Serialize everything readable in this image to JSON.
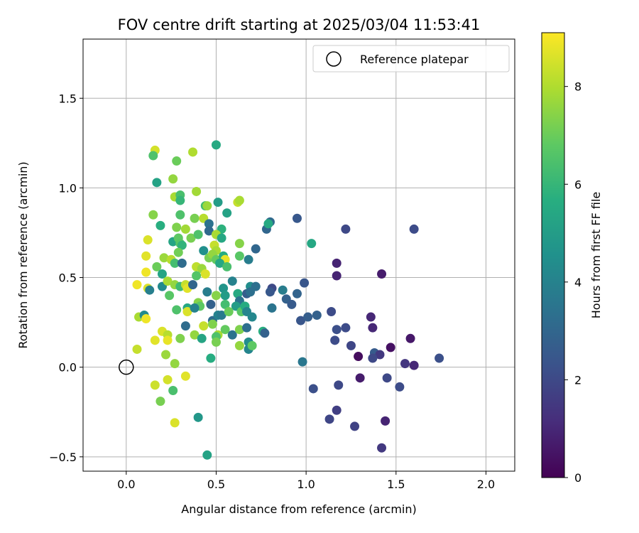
{
  "chart_data": {
    "type": "scatter",
    "title": "FOV centre drift starting at 2025/03/04 11:53:41",
    "xlabel": "Angular distance from reference (arcmin)",
    "ylabel": "Rotation from reference (arcmin)",
    "xlim": [
      -0.24,
      2.16
    ],
    "ylim": [
      -0.58,
      1.83
    ],
    "xticks": [
      "0.0",
      "0.5",
      "1.0",
      "1.5",
      "2.0"
    ],
    "yticks": [
      "−0.5",
      "0.0",
      "0.5",
      "1.0",
      "1.5"
    ],
    "grid": true,
    "legend": {
      "placement": "top-right",
      "entries": [
        "Reference platepar"
      ]
    },
    "reference_point": {
      "x": 0.0,
      "y": 0.0
    },
    "colorbar": {
      "label": "Hours from first FF file",
      "min": 0,
      "max": 9.1,
      "ticks": [
        "0",
        "2",
        "4",
        "6",
        "8"
      ],
      "colormap": "viridis"
    },
    "points": [
      {
        "x": 0.16,
        "y": 1.21,
        "h": 8.5
      },
      {
        "x": 0.15,
        "y": 1.18,
        "h": 6.5
      },
      {
        "x": 0.28,
        "y": 1.15,
        "h": 7.0
      },
      {
        "x": 0.37,
        "y": 1.2,
        "h": 8.0
      },
      {
        "x": 0.5,
        "y": 1.24,
        "h": 5.5
      },
      {
        "x": 0.17,
        "y": 1.03,
        "h": 5.2
      },
      {
        "x": 0.26,
        "y": 1.05,
        "h": 7.6
      },
      {
        "x": 0.39,
        "y": 0.98,
        "h": 7.8
      },
      {
        "x": 0.27,
        "y": 0.95,
        "h": 7.9
      },
      {
        "x": 0.3,
        "y": 0.96,
        "h": 6.4
      },
      {
        "x": 0.3,
        "y": 0.93,
        "h": 6.0
      },
      {
        "x": 0.44,
        "y": 0.9,
        "h": 6.2
      },
      {
        "x": 0.45,
        "y": 0.9,
        "h": 7.7
      },
      {
        "x": 0.51,
        "y": 0.92,
        "h": 5.0
      },
      {
        "x": 0.62,
        "y": 0.92,
        "h": 8.3
      },
      {
        "x": 0.63,
        "y": 0.93,
        "h": 7.9
      },
      {
        "x": 0.15,
        "y": 0.85,
        "h": 7.4
      },
      {
        "x": 0.3,
        "y": 0.85,
        "h": 6.5
      },
      {
        "x": 0.38,
        "y": 0.83,
        "h": 7.2
      },
      {
        "x": 0.43,
        "y": 0.83,
        "h": 8.1
      },
      {
        "x": 0.56,
        "y": 0.86,
        "h": 5.2
      },
      {
        "x": 0.19,
        "y": 0.79,
        "h": 5.7
      },
      {
        "x": 0.28,
        "y": 0.78,
        "h": 7.3
      },
      {
        "x": 0.33,
        "y": 0.77,
        "h": 7.8
      },
      {
        "x": 0.46,
        "y": 0.8,
        "h": 3.4
      },
      {
        "x": 0.46,
        "y": 0.76,
        "h": 3.1
      },
      {
        "x": 0.53,
        "y": 0.77,
        "h": 5.8
      },
      {
        "x": 0.12,
        "y": 0.71,
        "h": 8.6
      },
      {
        "x": 0.26,
        "y": 0.7,
        "h": 5.3
      },
      {
        "x": 0.29,
        "y": 0.72,
        "h": 6.8
      },
      {
        "x": 0.36,
        "y": 0.72,
        "h": 7.2
      },
      {
        "x": 0.4,
        "y": 0.74,
        "h": 6.5
      },
      {
        "x": 0.5,
        "y": 0.74,
        "h": 7.9
      },
      {
        "x": 0.53,
        "y": 0.72,
        "h": 5.4
      },
      {
        "x": 0.3,
        "y": 0.69,
        "h": 6.7
      },
      {
        "x": 0.31,
        "y": 0.68,
        "h": 5.9
      },
      {
        "x": 0.43,
        "y": 0.65,
        "h": 4.5
      },
      {
        "x": 0.49,
        "y": 0.68,
        "h": 8.3
      },
      {
        "x": 0.5,
        "y": 0.65,
        "h": 7.9
      },
      {
        "x": 0.63,
        "y": 0.69,
        "h": 7.4
      },
      {
        "x": 0.72,
        "y": 0.66,
        "h": 3.0
      },
      {
        "x": 0.11,
        "y": 0.62,
        "h": 8.7
      },
      {
        "x": 0.21,
        "y": 0.61,
        "h": 7.7
      },
      {
        "x": 0.25,
        "y": 0.6,
        "h": 8.1
      },
      {
        "x": 0.27,
        "y": 0.58,
        "h": 6.3
      },
      {
        "x": 0.29,
        "y": 0.64,
        "h": 7.1
      },
      {
        "x": 0.46,
        "y": 0.61,
        "h": 7.2
      },
      {
        "x": 0.48,
        "y": 0.63,
        "h": 7.6
      },
      {
        "x": 0.5,
        "y": 0.6,
        "h": 6.9
      },
      {
        "x": 0.54,
        "y": 0.62,
        "h": 5.6
      },
      {
        "x": 0.55,
        "y": 0.6,
        "h": 8.8
      },
      {
        "x": 0.63,
        "y": 0.62,
        "h": 6.7
      },
      {
        "x": 0.68,
        "y": 0.6,
        "h": 3.8
      },
      {
        "x": 0.17,
        "y": 0.56,
        "h": 7.0
      },
      {
        "x": 0.31,
        "y": 0.58,
        "h": 3.2
      },
      {
        "x": 0.39,
        "y": 0.56,
        "h": 8.2
      },
      {
        "x": 0.42,
        "y": 0.55,
        "h": 7.7
      },
      {
        "x": 0.44,
        "y": 0.52,
        "h": 8.6
      },
      {
        "x": 0.52,
        "y": 0.58,
        "h": 5.4
      },
      {
        "x": 0.56,
        "y": 0.56,
        "h": 6.4
      },
      {
        "x": 0.2,
        "y": 0.52,
        "h": 5.3
      },
      {
        "x": 0.11,
        "y": 0.53,
        "h": 8.9
      },
      {
        "x": 0.39,
        "y": 0.51,
        "h": 6.6
      },
      {
        "x": 0.06,
        "y": 0.46,
        "h": 8.9
      },
      {
        "x": 0.2,
        "y": 0.45,
        "h": 4.3
      },
      {
        "x": 0.23,
        "y": 0.48,
        "h": 7.9
      },
      {
        "x": 0.27,
        "y": 0.46,
        "h": 7.6
      },
      {
        "x": 0.3,
        "y": 0.45,
        "h": 6.2
      },
      {
        "x": 0.33,
        "y": 0.46,
        "h": 8.3
      },
      {
        "x": 0.34,
        "y": 0.44,
        "h": 8.7
      },
      {
        "x": 0.37,
        "y": 0.46,
        "h": 3.0
      },
      {
        "x": 0.54,
        "y": 0.44,
        "h": 4.7
      },
      {
        "x": 0.59,
        "y": 0.48,
        "h": 4.0
      },
      {
        "x": 0.69,
        "y": 0.45,
        "h": 4.4
      },
      {
        "x": 0.72,
        "y": 0.45,
        "h": 3.3
      },
      {
        "x": 0.12,
        "y": 0.44,
        "h": 8.6
      },
      {
        "x": 0.13,
        "y": 0.43,
        "h": 3.9
      },
      {
        "x": 0.24,
        "y": 0.4,
        "h": 6.7
      },
      {
        "x": 0.45,
        "y": 0.42,
        "h": 3.8
      },
      {
        "x": 0.5,
        "y": 0.4,
        "h": 7.4
      },
      {
        "x": 0.55,
        "y": 0.4,
        "h": 5.0
      },
      {
        "x": 0.62,
        "y": 0.41,
        "h": 5.5
      },
      {
        "x": 0.67,
        "y": 0.41,
        "h": 2.7
      },
      {
        "x": 0.69,
        "y": 0.42,
        "h": 3.3
      },
      {
        "x": 0.81,
        "y": 0.44,
        "h": 2.0
      },
      {
        "x": 0.8,
        "y": 0.42,
        "h": 2.5
      },
      {
        "x": 0.87,
        "y": 0.43,
        "h": 3.8
      },
      {
        "x": 0.89,
        "y": 0.38,
        "h": 2.8
      },
      {
        "x": 0.95,
        "y": 0.41,
        "h": 2.9
      },
      {
        "x": 0.99,
        "y": 0.47,
        "h": 2.4
      },
      {
        "x": 0.63,
        "y": 0.37,
        "h": 3.5
      },
      {
        "x": 0.34,
        "y": 0.33,
        "h": 5.4
      },
      {
        "x": 0.34,
        "y": 0.31,
        "h": 8.6
      },
      {
        "x": 0.4,
        "y": 0.36,
        "h": 7.4
      },
      {
        "x": 0.41,
        "y": 0.34,
        "h": 6.8
      },
      {
        "x": 0.47,
        "y": 0.35,
        "h": 2.8
      },
      {
        "x": 0.55,
        "y": 0.35,
        "h": 6.3
      },
      {
        "x": 0.61,
        "y": 0.34,
        "h": 5.0
      },
      {
        "x": 0.64,
        "y": 0.31,
        "h": 6.7
      },
      {
        "x": 0.66,
        "y": 0.34,
        "h": 5.6
      },
      {
        "x": 0.67,
        "y": 0.31,
        "h": 4.1
      },
      {
        "x": 0.07,
        "y": 0.28,
        "h": 7.9
      },
      {
        "x": 0.1,
        "y": 0.29,
        "h": 4.3
      },
      {
        "x": 0.28,
        "y": 0.32,
        "h": 6.5
      },
      {
        "x": 0.38,
        "y": 0.33,
        "h": 4.0
      },
      {
        "x": 0.48,
        "y": 0.26,
        "h": 3.2
      },
      {
        "x": 0.51,
        "y": 0.29,
        "h": 4.0
      },
      {
        "x": 0.53,
        "y": 0.29,
        "h": 3.7
      },
      {
        "x": 0.57,
        "y": 0.31,
        "h": 7.0
      },
      {
        "x": 0.7,
        "y": 0.28,
        "h": 4.2
      },
      {
        "x": 0.81,
        "y": 0.33,
        "h": 3.5
      },
      {
        "x": 0.92,
        "y": 0.35,
        "h": 2.6
      },
      {
        "x": 0.97,
        "y": 0.26,
        "h": 2.4
      },
      {
        "x": 1.01,
        "y": 0.28,
        "h": 2.7
      },
      {
        "x": 1.06,
        "y": 0.29,
        "h": 2.8
      },
      {
        "x": 1.14,
        "y": 0.31,
        "h": 2.1
      },
      {
        "x": 0.11,
        "y": 0.27,
        "h": 8.9
      },
      {
        "x": 0.2,
        "y": 0.2,
        "h": 8.6
      },
      {
        "x": 0.23,
        "y": 0.18,
        "h": 8.1
      },
      {
        "x": 0.33,
        "y": 0.23,
        "h": 3.2
      },
      {
        "x": 0.38,
        "y": 0.18,
        "h": 7.6
      },
      {
        "x": 0.43,
        "y": 0.23,
        "h": 8.3
      },
      {
        "x": 0.48,
        "y": 0.24,
        "h": 7.3
      },
      {
        "x": 0.51,
        "y": 0.18,
        "h": 7.9
      },
      {
        "x": 0.55,
        "y": 0.21,
        "h": 6.9
      },
      {
        "x": 0.59,
        "y": 0.18,
        "h": 3.4
      },
      {
        "x": 0.63,
        "y": 0.21,
        "h": 7.3
      },
      {
        "x": 0.67,
        "y": 0.22,
        "h": 3.3
      },
      {
        "x": 0.76,
        "y": 0.2,
        "h": 5.7
      },
      {
        "x": 0.77,
        "y": 0.19,
        "h": 2.8
      },
      {
        "x": 1.17,
        "y": 0.21,
        "h": 2.2
      },
      {
        "x": 1.22,
        "y": 0.22,
        "h": 2.1
      },
      {
        "x": 1.16,
        "y": 0.15,
        "h": 2.1
      },
      {
        "x": 1.25,
        "y": 0.12,
        "h": 1.9
      },
      {
        "x": 0.16,
        "y": 0.15,
        "h": 8.7
      },
      {
        "x": 0.23,
        "y": 0.15,
        "h": 8.8
      },
      {
        "x": 0.3,
        "y": 0.16,
        "h": 7.3
      },
      {
        "x": 0.42,
        "y": 0.16,
        "h": 5.3
      },
      {
        "x": 0.5,
        "y": 0.17,
        "h": 6.5
      },
      {
        "x": 0.5,
        "y": 0.14,
        "h": 7.2
      },
      {
        "x": 0.63,
        "y": 0.12,
        "h": 7.6
      },
      {
        "x": 0.68,
        "y": 0.14,
        "h": 4.4
      },
      {
        "x": 0.68,
        "y": 0.1,
        "h": 4.1
      },
      {
        "x": 0.7,
        "y": 0.12,
        "h": 6.8
      },
      {
        "x": 0.06,
        "y": 0.1,
        "h": 8.3
      },
      {
        "x": 0.22,
        "y": 0.07,
        "h": 7.7
      },
      {
        "x": 0.47,
        "y": 0.05,
        "h": 5.6
      },
      {
        "x": 1.29,
        "y": 0.06,
        "h": 0.3
      },
      {
        "x": 1.38,
        "y": 0.08,
        "h": 2.6
      },
      {
        "x": 1.41,
        "y": 0.07,
        "h": 1.5
      },
      {
        "x": 1.37,
        "y": 0.05,
        "h": 2.0
      },
      {
        "x": 1.47,
        "y": 0.11,
        "h": 0.4
      },
      {
        "x": 1.55,
        "y": 0.02,
        "h": 1.4
      },
      {
        "x": 1.58,
        "y": 0.16,
        "h": 0.6
      },
      {
        "x": 1.6,
        "y": 0.01,
        "h": 1.0
      },
      {
        "x": 1.74,
        "y": 0.05,
        "h": 2.2
      },
      {
        "x": 0.98,
        "y": 0.03,
        "h": 3.6
      },
      {
        "x": 0.27,
        "y": 0.02,
        "h": 7.6
      },
      {
        "x": 1.36,
        "y": 0.28,
        "h": 1.0
      },
      {
        "x": 1.37,
        "y": 0.22,
        "h": 1.0
      },
      {
        "x": 1.17,
        "y": 0.58,
        "h": 0.9
      },
      {
        "x": 1.17,
        "y": 0.51,
        "h": 0.9
      },
      {
        "x": 1.42,
        "y": 0.52,
        "h": 0.7
      },
      {
        "x": 1.22,
        "y": 0.77,
        "h": 2.0
      },
      {
        "x": 1.6,
        "y": 0.77,
        "h": 2.1
      },
      {
        "x": 0.95,
        "y": 0.83,
        "h": 2.5
      },
      {
        "x": 1.03,
        "y": 0.69,
        "h": 5.4
      },
      {
        "x": 0.8,
        "y": 0.81,
        "h": 3.1
      },
      {
        "x": 0.78,
        "y": 0.77,
        "h": 3.0
      },
      {
        "x": 0.79,
        "y": 0.8,
        "h": 5.5
      },
      {
        "x": 0.33,
        "y": -0.05,
        "h": 8.7
      },
      {
        "x": 0.16,
        "y": -0.1,
        "h": 8.4
      },
      {
        "x": 0.23,
        "y": -0.07,
        "h": 8.5
      },
      {
        "x": 0.26,
        "y": -0.13,
        "h": 6.4
      },
      {
        "x": 0.19,
        "y": -0.19,
        "h": 7.2
      },
      {
        "x": 0.27,
        "y": -0.31,
        "h": 8.6
      },
      {
        "x": 0.4,
        "y": -0.28,
        "h": 4.8
      },
      {
        "x": 0.45,
        "y": -0.49,
        "h": 5.2
      },
      {
        "x": 1.04,
        "y": -0.12,
        "h": 2.2
      },
      {
        "x": 1.18,
        "y": -0.1,
        "h": 2.0
      },
      {
        "x": 1.3,
        "y": -0.06,
        "h": 0.7
      },
      {
        "x": 1.45,
        "y": -0.06,
        "h": 2.0
      },
      {
        "x": 1.52,
        "y": -0.11,
        "h": 2.1
      },
      {
        "x": 1.17,
        "y": -0.24,
        "h": 1.7
      },
      {
        "x": 1.13,
        "y": -0.29,
        "h": 1.9
      },
      {
        "x": 1.27,
        "y": -0.33,
        "h": 1.8
      },
      {
        "x": 1.44,
        "y": -0.3,
        "h": 0.9
      },
      {
        "x": 1.42,
        "y": -0.45,
        "h": 1.5
      }
    ]
  }
}
